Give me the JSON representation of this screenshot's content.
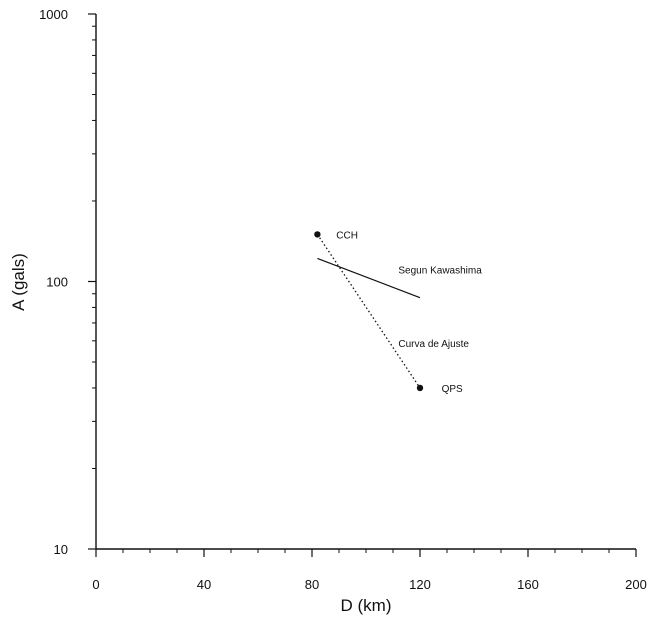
{
  "chart_data": {
    "type": "scatter",
    "xlabel": "D (km)",
    "ylabel": "A (gals)",
    "xlim": [
      0,
      200
    ],
    "ylim": [
      10,
      1000
    ],
    "yscale": "log",
    "grid": false,
    "xticks": [
      0,
      40,
      80,
      120,
      160,
      200
    ],
    "xtick_labels": [
      "0",
      "40",
      "80",
      "120",
      "160",
      "200"
    ],
    "yticks": [
      10,
      100,
      1000
    ],
    "ytick_labels": [
      "10",
      "100",
      "1000"
    ],
    "points": [
      {
        "label": "CCH",
        "x": 82,
        "y": 150
      },
      {
        "label": "QPS",
        "x": 120,
        "y": 40
      }
    ],
    "series": [
      {
        "name": "Segun Kawashima",
        "style": "solid",
        "x": [
          82,
          120
        ],
        "y": [
          122,
          87
        ]
      },
      {
        "name": "Curva de Ajuste",
        "style": "dotted",
        "x": [
          82,
          120
        ],
        "y": [
          150,
          40
        ]
      }
    ],
    "annotations": [
      {
        "text": "CCH",
        "x": 89,
        "y": 150
      },
      {
        "text": "Segun Kawashima",
        "x": 112,
        "y": 111
      },
      {
        "text": "Curva de Ajuste",
        "x": 112,
        "y": 59
      },
      {
        "text": "QPS",
        "x": 128,
        "y": 40
      }
    ]
  }
}
